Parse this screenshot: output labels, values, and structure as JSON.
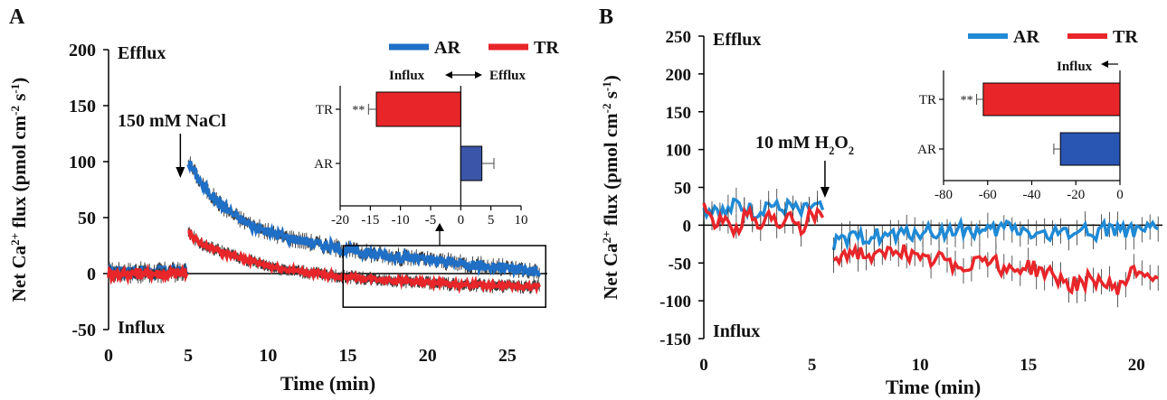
{
  "chart_data": [
    {
      "panel_label": "A",
      "type": "line",
      "xlabel": "Time (min)",
      "ylabel": "Net Ca2+ flux (pmol cm-2 s-1)",
      "ylabel_parts": [
        "Net Ca",
        "2+",
        " flux (pmol cm",
        "-2",
        " s",
        "-1",
        ")"
      ],
      "xlim": [
        0,
        27.5
      ],
      "ylim": [
        -50,
        200
      ],
      "xticks": [
        0,
        5,
        10,
        15,
        20,
        25
      ],
      "yticks": [
        -50,
        0,
        50,
        100,
        150,
        200
      ],
      "efflux_label": "Efflux",
      "influx_label": "Influx",
      "annotation": {
        "text": "150 mM NaCl",
        "x": 4.5
      },
      "legend": {
        "position": "top-right",
        "entries": [
          "AR",
          "TR"
        ]
      },
      "series": [
        {
          "name": "AR",
          "color": "#1f6fc6",
          "baseline": {
            "x": [
              0,
              4.9
            ],
            "mean": 2
          },
          "x": [
            5,
            5.5,
            6,
            7,
            8,
            9,
            10,
            11,
            12,
            13,
            14,
            15,
            16,
            17,
            18,
            19,
            20,
            21,
            22,
            23,
            24,
            25,
            26,
            27
          ],
          "y": [
            100,
            88,
            77,
            62,
            51,
            43,
            37,
            33,
            30,
            27,
            24,
            21,
            19,
            17,
            15,
            14,
            12,
            11,
            9,
            8,
            6,
            5,
            4,
            1
          ]
        },
        {
          "name": "TR",
          "color": "#e8262a",
          "baseline": {
            "x": [
              0,
              4.9
            ],
            "mean": 0
          },
          "x": [
            5,
            5.5,
            6,
            7,
            8,
            9,
            10,
            11,
            12,
            13,
            14,
            15,
            16,
            17,
            18,
            19,
            20,
            21,
            22,
            23,
            24,
            25,
            26,
            27
          ],
          "y": [
            37,
            30,
            25,
            20,
            15,
            11,
            7,
            4,
            2,
            0,
            -2,
            -3,
            -4,
            -5,
            -6,
            -7,
            -8,
            -9,
            -10,
            -10,
            -11,
            -11,
            -12,
            -12
          ]
        }
      ],
      "inset": {
        "type": "bar",
        "orientation": "horizontal",
        "categories": [
          "TR",
          "AR"
        ],
        "values": [
          -14,
          3.5
        ],
        "errors": [
          1.3,
          2
        ],
        "colors": [
          "#e8262a",
          "#3b56a8"
        ],
        "significance": [
          "**",
          ""
        ],
        "xlim": [
          -20,
          10
        ],
        "xticks": [
          -20,
          -15,
          -10,
          -5,
          0,
          5,
          10
        ],
        "direction_left": "Influx",
        "direction_right": "Efflux"
      }
    },
    {
      "panel_label": "B",
      "type": "line",
      "xlabel": "Time (min)",
      "ylabel": "Net Ca2+ flux (pmol cm-2 s-1)",
      "ylabel_parts": [
        "Net Ca",
        "2+",
        " flux (pmol cm",
        "-2",
        " s",
        "-1",
        ")"
      ],
      "xlim": [
        0,
        21.2
      ],
      "ylim": [
        -150,
        250
      ],
      "xticks": [
        0,
        5,
        10,
        15,
        20
      ],
      "yticks": [
        -150,
        -100,
        -50,
        0,
        50,
        100,
        150,
        200,
        250
      ],
      "efflux_label": "Efflux",
      "influx_label": "Influx",
      "annotation": {
        "text": "10 mM H2O2",
        "text_parts": [
          "10 mM H",
          "2",
          "O",
          "2"
        ],
        "x": 5.6
      },
      "legend": {
        "position": "top-right",
        "entries": [
          "AR",
          "TR"
        ]
      },
      "series": [
        {
          "name": "AR",
          "color": "#1f8ad6",
          "x": [
            0,
            0.5,
            1,
            1.5,
            2,
            2.5,
            3,
            3.5,
            4,
            4.5,
            5,
            5.5,
            6,
            7,
            8,
            9,
            10,
            11,
            12,
            13,
            14,
            15,
            16,
            17,
            18,
            19,
            20,
            21
          ],
          "y": [
            20,
            25,
            15,
            28,
            22,
            18,
            30,
            20,
            25,
            15,
            25,
            20,
            -25,
            -18,
            -12,
            -15,
            -8,
            -10,
            -5,
            -12,
            -2,
            -8,
            -15,
            -5,
            -10,
            -3,
            -12,
            -5
          ]
        },
        {
          "name": "TR",
          "color": "#e8262a",
          "x": [
            0,
            0.5,
            1,
            1.5,
            2,
            2.5,
            3,
            3.5,
            4,
            4.5,
            5,
            5.5,
            6,
            7,
            8,
            9,
            10,
            11,
            12,
            13,
            14,
            15,
            16,
            17,
            18,
            19,
            20,
            21
          ],
          "y": [
            25,
            0,
            15,
            -10,
            20,
            -5,
            10,
            0,
            20,
            -5,
            15,
            10,
            -40,
            -35,
            -45,
            -30,
            -50,
            -45,
            -55,
            -40,
            -60,
            -55,
            -65,
            -80,
            -70,
            -85,
            -60,
            -70
          ]
        }
      ],
      "inset": {
        "type": "bar",
        "orientation": "horizontal",
        "categories": [
          "TR",
          "AR"
        ],
        "values": [
          -62,
          -27
        ],
        "errors": [
          3,
          3
        ],
        "colors": [
          "#e8262a",
          "#2a56b3"
        ],
        "significance": [
          "**",
          ""
        ],
        "xlim": [
          -80,
          0
        ],
        "xticks": [
          -80,
          -60,
          -40,
          -20,
          0
        ],
        "direction_left": "Influx"
      }
    }
  ]
}
